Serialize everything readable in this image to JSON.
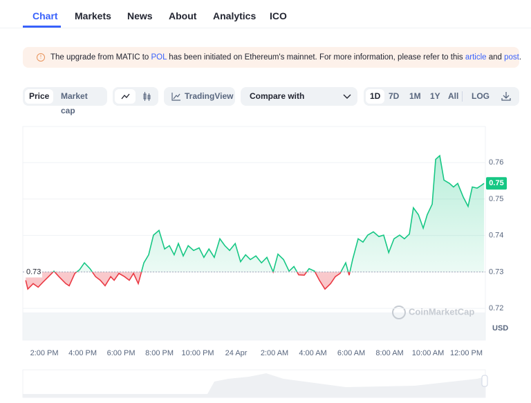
{
  "tabs": [
    "Chart",
    "Markets",
    "News",
    "About",
    "Analytics",
    "ICO"
  ],
  "banner": {
    "text_1": "The upgrade from MATIC to ",
    "link_1": "POL",
    "text_2": " has been initiated on Ethereum's mainnet. For more information, please refer to this ",
    "link_2": "article",
    "text_3": " and ",
    "link_3": "post",
    "text_4": "."
  },
  "toolbar": {
    "price": "Price",
    "market_cap": "Market cap",
    "tradingview": "TradingView",
    "compare": "Compare with",
    "ranges": [
      "1D",
      "7D",
      "1M",
      "1Y",
      "All"
    ],
    "log": "LOG"
  },
  "chart_data": {
    "type": "line",
    "x": [
      13.03,
      13.14,
      13.42,
      13.68,
      13.93,
      14.22,
      14.5,
      14.76,
      15.12,
      15.3,
      15.59,
      15.84,
      16.09,
      16.38,
      16.67,
      16.92,
      17.17,
      17.46,
      17.64,
      17.89,
      18.18,
      18.43,
      18.65,
      18.9,
      19.19,
      19.44,
      19.69,
      19.98,
      20.27,
      20.52,
      20.77,
      20.99,
      21.24,
      21.5,
      21.78,
      22.07,
      22.32,
      22.58,
      22.86,
      23.15,
      23.41,
      23.66,
      23.95,
      24.23,
      24.49,
      24.74,
      25.03,
      25.32,
      25.6,
      25.93,
      26.18,
      26.47,
      26.76,
      27.01,
      27.26,
      27.55,
      27.8,
      28.09,
      28.34,
      28.63,
      28.92,
      29.17,
      29.42,
      29.71,
      29.89,
      30.07,
      30.36,
      30.61,
      30.86,
      31.15,
      31.44,
      31.69,
      31.95,
      32.23,
      32.52,
      32.77,
      33.03,
      33.24,
      33.5,
      33.75,
      33.96,
      34.22,
      34.4,
      34.61,
      34.83,
      35.12,
      35.33,
      35.55,
      35.84,
      36.09,
      36.31,
      36.56,
      36.77,
      36.92
    ],
    "values": [
      0.7277,
      0.7253,
      0.7268,
      0.7258,
      0.7272,
      0.7287,
      0.7302,
      0.7287,
      0.7268,
      0.7262,
      0.7296,
      0.7306,
      0.7325,
      0.7309,
      0.7287,
      0.7277,
      0.7262,
      0.7287,
      0.7277,
      0.7296,
      0.7287,
      0.7277,
      0.7296,
      0.7268,
      0.7325,
      0.7347,
      0.7401,
      0.7414,
      0.7363,
      0.7372,
      0.7347,
      0.7378,
      0.7344,
      0.7372,
      0.7359,
      0.7366,
      0.734,
      0.7363,
      0.734,
      0.7391,
      0.7372,
      0.7359,
      0.7378,
      0.7328,
      0.7347,
      0.7334,
      0.7344,
      0.7325,
      0.734,
      0.73,
      0.7349,
      0.7334,
      0.7302,
      0.7315,
      0.7292,
      0.7291,
      0.7309,
      0.7302,
      0.7277,
      0.7253,
      0.7268,
      0.7287,
      0.7296,
      0.7325,
      0.7291,
      0.7334,
      0.7391,
      0.7382,
      0.7401,
      0.741,
      0.7397,
      0.7401,
      0.7353,
      0.7391,
      0.7401,
      0.7391,
      0.7404,
      0.7476,
      0.7457,
      0.742,
      0.7457,
      0.7486,
      0.7609,
      0.7619,
      0.7552,
      0.7543,
      0.7533,
      0.7543,
      0.7505,
      0.748,
      0.7533,
      0.753,
      0.7537,
      0.7543
    ],
    "up_color": "#16c784",
    "down_color": "#ea3943",
    "baseline": 0.73,
    "current_price": {
      "value": 0.7543,
      "label": "0.75"
    },
    "xlim": [
      12.88,
      36.99
    ],
    "ylim": [
      0.7113,
      0.7699
    ],
    "xticks": [
      {
        "value": 14,
        "label": "2:00 PM"
      },
      {
        "value": 16,
        "label": "4:00 PM"
      },
      {
        "value": 18,
        "label": "6:00 PM"
      },
      {
        "value": 20,
        "label": "8:00 PM"
      },
      {
        "value": 22,
        "label": "10:00 PM"
      },
      {
        "value": 24,
        "label": "24 Apr"
      },
      {
        "value": 26,
        "label": "2:00 AM"
      },
      {
        "value": 28,
        "label": "4:00 AM"
      },
      {
        "value": 30,
        "label": "6:00 AM"
      },
      {
        "value": 32,
        "label": "8:00 AM"
      },
      {
        "value": 34,
        "label": "10:00 AM"
      },
      {
        "value": 36,
        "label": "12:00 PM"
      }
    ],
    "yticks": [
      0.72,
      0.73,
      0.74,
      0.75,
      0.76
    ],
    "grid": true,
    "y_unit": "USD",
    "watermark": "CoinMarketCap"
  }
}
